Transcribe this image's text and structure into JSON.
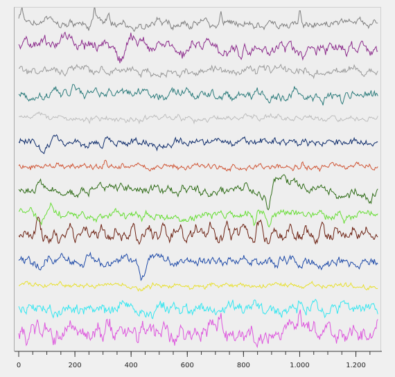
{
  "chart_data": {
    "type": "line",
    "x_axis": {
      "min": 0,
      "max": 1280,
      "major_ticks": [
        0,
        200,
        400,
        600,
        800,
        1000,
        1200
      ],
      "tick_labels": [
        "0",
        "200",
        "400",
        "600",
        "800",
        "1.000",
        "1.200"
      ],
      "minor_step": 50
    },
    "title": "",
    "xlabel": "",
    "ylabel": "",
    "grid": false,
    "legend": "none",
    "series": [
      {
        "color": "#7f7f7f",
        "amp": 0.22,
        "noise": 0.1,
        "seed": 11,
        "events": [
          [
            10,
            -0.9,
            8
          ],
          [
            270,
            -1.0,
            6
          ],
          [
            320,
            -0.9,
            6
          ],
          [
            720,
            -1.0,
            6
          ],
          [
            1000,
            -1.0,
            6
          ]
        ]
      },
      {
        "color": "#8b2a8b",
        "amp": 0.3,
        "noise": 0.14,
        "seed": 23,
        "events": [
          [
            180,
            -0.7,
            25
          ],
          [
            330,
            0.6,
            25
          ],
          [
            360,
            0.9,
            12
          ],
          [
            400,
            -1.0,
            18
          ],
          [
            580,
            0.7,
            20
          ],
          [
            790,
            0.9,
            18
          ],
          [
            1010,
            0.7,
            25
          ]
        ]
      },
      {
        "color": "#9a9a9a",
        "amp": 0.2,
        "noise": 0.12,
        "seed": 31,
        "events": [
          [
            300,
            -0.4,
            8
          ],
          [
            1050,
            0.3,
            10
          ]
        ]
      },
      {
        "color": "#2b7b7b",
        "amp": 0.25,
        "noise": 0.1,
        "seed": 41,
        "events": [
          [
            200,
            -0.4,
            15
          ],
          [
            990,
            -0.4,
            15
          ],
          [
            1150,
            0.5,
            20
          ]
        ]
      },
      {
        "color": "#bdbdbd",
        "amp": 0.15,
        "noise": 0.08,
        "seed": 53,
        "events": [
          [
            310,
            -0.3,
            10
          ],
          [
            610,
            -0.2,
            10
          ]
        ]
      },
      {
        "color": "#0d2b6b",
        "amp": 0.2,
        "noise": 0.1,
        "seed": 61,
        "events": [
          [
            90,
            0.6,
            15
          ],
          [
            130,
            -0.5,
            15
          ],
          [
            310,
            -0.4,
            8
          ],
          [
            1020,
            -0.4,
            8
          ]
        ]
      },
      {
        "color": "#d05535",
        "amp": 0.15,
        "noise": 0.08,
        "seed": 71,
        "events": [
          [
            310,
            -0.4,
            8
          ],
          [
            1010,
            -0.3,
            8
          ]
        ]
      },
      {
        "color": "#2e6b16",
        "amp": 0.25,
        "noise": 0.1,
        "seed": 83,
        "events": [
          [
            290,
            -0.4,
            10
          ],
          [
            890,
            1.2,
            10
          ],
          [
            940,
            -1.0,
            40
          ],
          [
            1250,
            0.8,
            15
          ]
        ]
      },
      {
        "color": "#66dd33",
        "amp": 0.2,
        "noise": 0.12,
        "seed": 97,
        "events": [
          [
            80,
            0.7,
            20
          ],
          [
            110,
            -0.6,
            25
          ],
          [
            840,
            0.8,
            6
          ],
          [
            890,
            0.9,
            10
          ],
          [
            1160,
            0.5,
            6
          ]
        ]
      },
      {
        "color": "#6b1f10",
        "amp": 0.35,
        "noise": 0.1,
        "seed": 101,
        "periodic": [
          56,
          0.8
        ],
        "events": [
          [
            860,
            -0.8,
            15
          ]
        ]
      },
      {
        "color": "#1e4aa8",
        "amp": 0.25,
        "noise": 0.12,
        "seed": 113,
        "events": [
          [
            440,
            1.2,
            15
          ],
          [
            500,
            -0.7,
            30
          ],
          [
            1210,
            0.9,
            10
          ],
          [
            1250,
            -0.5,
            15
          ]
        ]
      },
      {
        "color": "#e8e030",
        "amp": 0.12,
        "noise": 0.08,
        "seed": 127,
        "events": [
          [
            440,
            0.3,
            10
          ]
        ]
      },
      {
        "color": "#33e6f0",
        "amp": 0.3,
        "noise": 0.18,
        "seed": 131,
        "events": [
          [
            290,
            -0.7,
            12
          ],
          [
            1000,
            -0.5,
            12
          ]
        ]
      },
      {
        "color": "#dd55dd",
        "amp": 0.45,
        "noise": 0.25,
        "seed": 139,
        "events": [
          [
            280,
            -1.0,
            8
          ],
          [
            320,
            -1.0,
            8
          ],
          [
            720,
            -0.9,
            8
          ],
          [
            1000,
            -1.0,
            8
          ]
        ]
      }
    ]
  }
}
